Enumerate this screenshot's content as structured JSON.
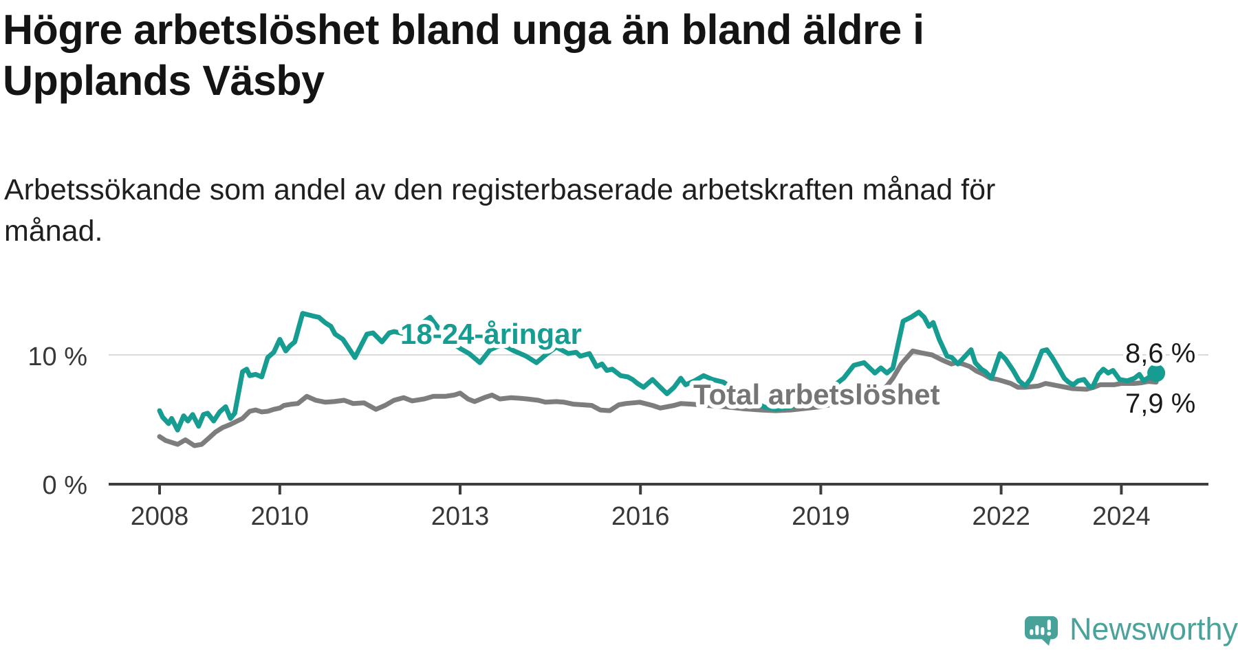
{
  "header": {
    "title_lines": [
      "Högre arbetslöshet bland unga än bland äldre i",
      "Upplands Väsby"
    ],
    "subtitle_lines": [
      "Arbetssökande som andel av den registerbaserade arbetskraften månad för",
      "månad."
    ]
  },
  "footer": {
    "brand": "Newsworthy",
    "logo_icon": "speech-bubble-bar-chart-exclamation"
  },
  "chart_data": {
    "type": "line",
    "title": "Högre arbetslöshet bland unga än bland äldre i Upplands Väsby",
    "subtitle": "Arbetssökande som andel av den registerbaserade arbetskraften månad för månad.",
    "unit": "%",
    "x_range": [
      2008,
      2024.7
    ],
    "ylim": [
      0,
      14
    ],
    "grid": "single horizontal gridline at 10 %",
    "legend_position": "inline labels on lines",
    "x_ticks": [
      {
        "year": 2008,
        "label": "2008"
      },
      {
        "year": 2010,
        "label": "2010"
      },
      {
        "year": 2013,
        "label": "2013"
      },
      {
        "year": 2016,
        "label": "2016"
      },
      {
        "year": 2019,
        "label": "2019"
      },
      {
        "year": 2022,
        "label": "2022"
      },
      {
        "year": 2024,
        "label": "2024"
      }
    ],
    "y_ticks": [
      {
        "value": 10,
        "label": "10 %"
      },
      {
        "value": 0,
        "label": "0 %"
      }
    ],
    "series": [
      {
        "name": "18-24-åringar",
        "color": "#169c90",
        "end_label": "8,6 %",
        "end_value": 8.6,
        "end_marker": true,
        "points": [
          [
            2008.0,
            5.7
          ],
          [
            2008.05,
            5.2
          ],
          [
            2008.15,
            4.7
          ],
          [
            2008.2,
            5.1
          ],
          [
            2008.3,
            4.2
          ],
          [
            2008.4,
            5.3
          ],
          [
            2008.47,
            4.9
          ],
          [
            2008.55,
            5.4
          ],
          [
            2008.65,
            4.5
          ],
          [
            2008.73,
            5.4
          ],
          [
            2008.8,
            5.5
          ],
          [
            2008.9,
            4.9
          ],
          [
            2009.0,
            5.6
          ],
          [
            2009.1,
            6.0
          ],
          [
            2009.18,
            5.1
          ],
          [
            2009.25,
            5.5
          ],
          [
            2009.38,
            8.7
          ],
          [
            2009.45,
            8.9
          ],
          [
            2009.5,
            8.4
          ],
          [
            2009.6,
            8.5
          ],
          [
            2009.7,
            8.3
          ],
          [
            2009.8,
            9.8
          ],
          [
            2009.9,
            10.2
          ],
          [
            2010.0,
            11.2
          ],
          [
            2010.1,
            10.3
          ],
          [
            2010.17,
            10.7
          ],
          [
            2010.25,
            11.0
          ],
          [
            2010.38,
            13.2
          ],
          [
            2010.55,
            13.0
          ],
          [
            2010.65,
            12.9
          ],
          [
            2010.75,
            12.5
          ],
          [
            2010.85,
            12.2
          ],
          [
            2010.92,
            11.6
          ],
          [
            2011.05,
            11.2
          ],
          [
            2011.25,
            9.8
          ],
          [
            2011.45,
            11.6
          ],
          [
            2011.55,
            11.7
          ],
          [
            2011.7,
            11.0
          ],
          [
            2011.82,
            11.7
          ],
          [
            2011.9,
            11.8
          ],
          [
            2012.1,
            11.6
          ],
          [
            2012.3,
            12.2
          ],
          [
            2012.5,
            12.9
          ],
          [
            2012.65,
            12.0
          ],
          [
            2012.8,
            11.2
          ],
          [
            2013.0,
            10.5
          ],
          [
            2013.15,
            10.1
          ],
          [
            2013.33,
            9.4
          ],
          [
            2013.5,
            10.4
          ],
          [
            2013.7,
            10.8
          ],
          [
            2013.9,
            10.3
          ],
          [
            2014.1,
            9.9
          ],
          [
            2014.27,
            9.4
          ],
          [
            2014.45,
            10.1
          ],
          [
            2014.6,
            10.6
          ],
          [
            2014.8,
            10.1
          ],
          [
            2014.93,
            10.2
          ],
          [
            2015.0,
            9.9
          ],
          [
            2015.15,
            10.1
          ],
          [
            2015.27,
            9.1
          ],
          [
            2015.36,
            9.3
          ],
          [
            2015.44,
            8.8
          ],
          [
            2015.53,
            8.9
          ],
          [
            2015.67,
            8.4
          ],
          [
            2015.79,
            8.3
          ],
          [
            2015.87,
            8.1
          ],
          [
            2015.95,
            7.8
          ],
          [
            2016.05,
            7.5
          ],
          [
            2016.2,
            8.1
          ],
          [
            2016.33,
            7.5
          ],
          [
            2016.44,
            7.0
          ],
          [
            2016.56,
            7.5
          ],
          [
            2016.67,
            8.2
          ],
          [
            2016.75,
            7.7
          ],
          [
            2016.9,
            8.0
          ],
          [
            2017.05,
            8.4
          ],
          [
            2017.2,
            8.1
          ],
          [
            2017.38,
            7.9
          ],
          [
            2017.6,
            7.2
          ],
          [
            2017.85,
            6.5
          ],
          [
            2018.05,
            6.0
          ],
          [
            2018.25,
            5.8
          ],
          [
            2018.5,
            6.0
          ],
          [
            2018.7,
            6.3
          ],
          [
            2018.9,
            6.6
          ],
          [
            2019.1,
            7.2
          ],
          [
            2019.38,
            8.2
          ],
          [
            2019.55,
            9.2
          ],
          [
            2019.72,
            9.4
          ],
          [
            2019.9,
            8.6
          ],
          [
            2020.0,
            9.0
          ],
          [
            2020.1,
            8.6
          ],
          [
            2020.2,
            9.0
          ],
          [
            2020.37,
            12.6
          ],
          [
            2020.5,
            12.9
          ],
          [
            2020.63,
            13.3
          ],
          [
            2020.72,
            12.9
          ],
          [
            2020.8,
            12.2
          ],
          [
            2020.87,
            12.5
          ],
          [
            2020.97,
            11.2
          ],
          [
            2021.1,
            9.9
          ],
          [
            2021.18,
            9.8
          ],
          [
            2021.28,
            9.3
          ],
          [
            2021.36,
            9.7
          ],
          [
            2021.5,
            10.4
          ],
          [
            2021.57,
            9.4
          ],
          [
            2021.67,
            8.9
          ],
          [
            2021.74,
            8.7
          ],
          [
            2021.84,
            8.2
          ],
          [
            2021.98,
            10.1
          ],
          [
            2022.07,
            9.7
          ],
          [
            2022.2,
            8.8
          ],
          [
            2022.3,
            8.0
          ],
          [
            2022.4,
            7.6
          ],
          [
            2022.5,
            8.2
          ],
          [
            2022.68,
            10.3
          ],
          [
            2022.76,
            10.4
          ],
          [
            2022.85,
            9.8
          ],
          [
            2022.94,
            9.1
          ],
          [
            2023.05,
            8.2
          ],
          [
            2023.12,
            7.9
          ],
          [
            2023.2,
            7.7
          ],
          [
            2023.28,
            8.0
          ],
          [
            2023.38,
            8.1
          ],
          [
            2023.46,
            7.6
          ],
          [
            2023.52,
            7.5
          ],
          [
            2023.62,
            8.5
          ],
          [
            2023.7,
            8.9
          ],
          [
            2023.78,
            8.6
          ],
          [
            2023.86,
            8.8
          ],
          [
            2023.97,
            8.1
          ],
          [
            2024.1,
            8.0
          ],
          [
            2024.22,
            8.2
          ],
          [
            2024.3,
            8.5
          ],
          [
            2024.37,
            8.0
          ],
          [
            2024.5,
            8.4
          ],
          [
            2024.58,
            8.6
          ]
        ]
      },
      {
        "name": "Total arbetslöshet",
        "color": "#7d7d7d",
        "end_label": "7,9 %",
        "end_value": 7.9,
        "end_marker": false,
        "points": [
          [
            2008.0,
            3.7
          ],
          [
            2008.1,
            3.4
          ],
          [
            2008.3,
            3.1
          ],
          [
            2008.43,
            3.45
          ],
          [
            2008.58,
            3.0
          ],
          [
            2008.7,
            3.1
          ],
          [
            2008.8,
            3.5
          ],
          [
            2008.93,
            4.05
          ],
          [
            2009.05,
            4.4
          ],
          [
            2009.16,
            4.6
          ],
          [
            2009.27,
            4.85
          ],
          [
            2009.38,
            5.1
          ],
          [
            2009.5,
            5.65
          ],
          [
            2009.6,
            5.75
          ],
          [
            2009.7,
            5.6
          ],
          [
            2009.8,
            5.65
          ],
          [
            2009.9,
            5.8
          ],
          [
            2010.0,
            5.9
          ],
          [
            2010.07,
            6.1
          ],
          [
            2010.2,
            6.2
          ],
          [
            2010.3,
            6.25
          ],
          [
            2010.45,
            6.8
          ],
          [
            2010.6,
            6.5
          ],
          [
            2010.76,
            6.35
          ],
          [
            2010.9,
            6.4
          ],
          [
            2011.07,
            6.5
          ],
          [
            2011.22,
            6.25
          ],
          [
            2011.4,
            6.3
          ],
          [
            2011.6,
            5.8
          ],
          [
            2011.75,
            6.1
          ],
          [
            2011.9,
            6.5
          ],
          [
            2012.06,
            6.7
          ],
          [
            2012.2,
            6.45
          ],
          [
            2012.4,
            6.6
          ],
          [
            2012.55,
            6.8
          ],
          [
            2012.75,
            6.8
          ],
          [
            2012.9,
            6.9
          ],
          [
            2013.0,
            7.05
          ],
          [
            2013.13,
            6.6
          ],
          [
            2013.24,
            6.4
          ],
          [
            2013.4,
            6.7
          ],
          [
            2013.53,
            6.9
          ],
          [
            2013.66,
            6.6
          ],
          [
            2013.85,
            6.7
          ],
          [
            2014.0,
            6.65
          ],
          [
            2014.12,
            6.6
          ],
          [
            2014.3,
            6.5
          ],
          [
            2014.42,
            6.35
          ],
          [
            2014.6,
            6.4
          ],
          [
            2014.73,
            6.35
          ],
          [
            2014.88,
            6.2
          ],
          [
            2015.05,
            6.15
          ],
          [
            2015.19,
            6.1
          ],
          [
            2015.33,
            5.75
          ],
          [
            2015.49,
            5.7
          ],
          [
            2015.64,
            6.15
          ],
          [
            2015.76,
            6.25
          ],
          [
            2015.99,
            6.35
          ],
          [
            2016.2,
            6.1
          ],
          [
            2016.33,
            5.9
          ],
          [
            2016.56,
            6.1
          ],
          [
            2016.67,
            6.25
          ],
          [
            2016.85,
            6.2
          ],
          [
            2017.1,
            6.1
          ],
          [
            2017.4,
            6.0
          ],
          [
            2017.7,
            5.85
          ],
          [
            2018.0,
            5.75
          ],
          [
            2018.25,
            5.7
          ],
          [
            2018.5,
            5.75
          ],
          [
            2018.8,
            5.9
          ],
          [
            2019.0,
            6.0
          ],
          [
            2019.2,
            6.2
          ],
          [
            2019.4,
            6.4
          ],
          [
            2019.6,
            6.6
          ],
          [
            2019.8,
            6.8
          ],
          [
            2019.95,
            7.0
          ],
          [
            2020.1,
            7.6
          ],
          [
            2020.2,
            8.2
          ],
          [
            2020.34,
            9.3
          ],
          [
            2020.53,
            10.3
          ],
          [
            2020.68,
            10.15
          ],
          [
            2020.85,
            10.0
          ],
          [
            2021.02,
            9.6
          ],
          [
            2021.17,
            9.3
          ],
          [
            2021.25,
            9.4
          ],
          [
            2021.36,
            9.3
          ],
          [
            2021.48,
            9.1
          ],
          [
            2021.59,
            8.75
          ],
          [
            2021.71,
            8.5
          ],
          [
            2021.82,
            8.2
          ],
          [
            2021.94,
            8.1
          ],
          [
            2022.05,
            7.95
          ],
          [
            2022.16,
            7.8
          ],
          [
            2022.28,
            7.5
          ],
          [
            2022.4,
            7.5
          ],
          [
            2022.62,
            7.6
          ],
          [
            2022.74,
            7.8
          ],
          [
            2022.96,
            7.6
          ],
          [
            2023.19,
            7.4
          ],
          [
            2023.42,
            7.35
          ],
          [
            2023.54,
            7.5
          ],
          [
            2023.65,
            7.7
          ],
          [
            2023.88,
            7.7
          ],
          [
            2024.0,
            7.8
          ],
          [
            2024.22,
            7.8
          ],
          [
            2024.34,
            7.85
          ],
          [
            2024.45,
            7.95
          ],
          [
            2024.58,
            7.9
          ]
        ]
      }
    ]
  }
}
